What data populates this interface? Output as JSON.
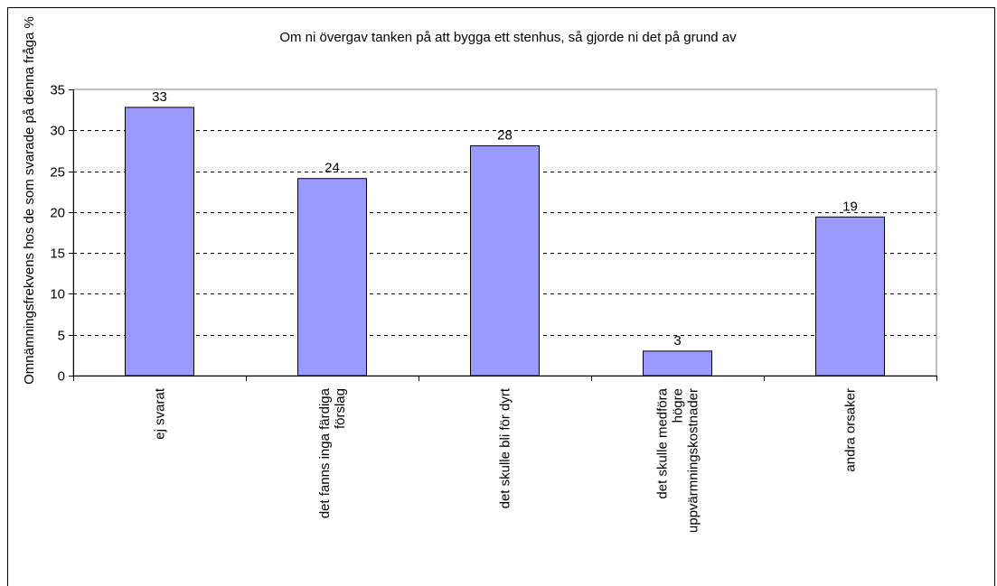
{
  "chart_data": {
    "type": "bar",
    "title": "Om ni övergav tanken på att bygga ett stenhus, så gjorde ni det på grund av",
    "xlabel": "",
    "ylabel": "Omnämningsfrekvens hos de som svarade på denna fråga %",
    "categories": [
      [
        "ej svarat"
      ],
      [
        "det fanns inga färdiga",
        "förslag"
      ],
      [
        "det skulle bli för dyrt"
      ],
      [
        "det skulle medföra",
        "högre",
        "uppvärmningskostnader"
      ],
      [
        "andra orsaker"
      ]
    ],
    "values": [
      32.8,
      24.1,
      28.1,
      3.0,
      19.4
    ],
    "data_labels": [
      "33",
      "24",
      "28",
      "3",
      "19"
    ],
    "ylim": [
      0,
      35
    ],
    "yticks": [
      0,
      5,
      10,
      15,
      20,
      25,
      30,
      35
    ],
    "grid": true,
    "colors": {
      "bar_fill": "#9999ff",
      "bar_stroke": "#000000",
      "grid": "#000000",
      "plot_bg": "#ffffff",
      "frame": "#000000"
    }
  }
}
